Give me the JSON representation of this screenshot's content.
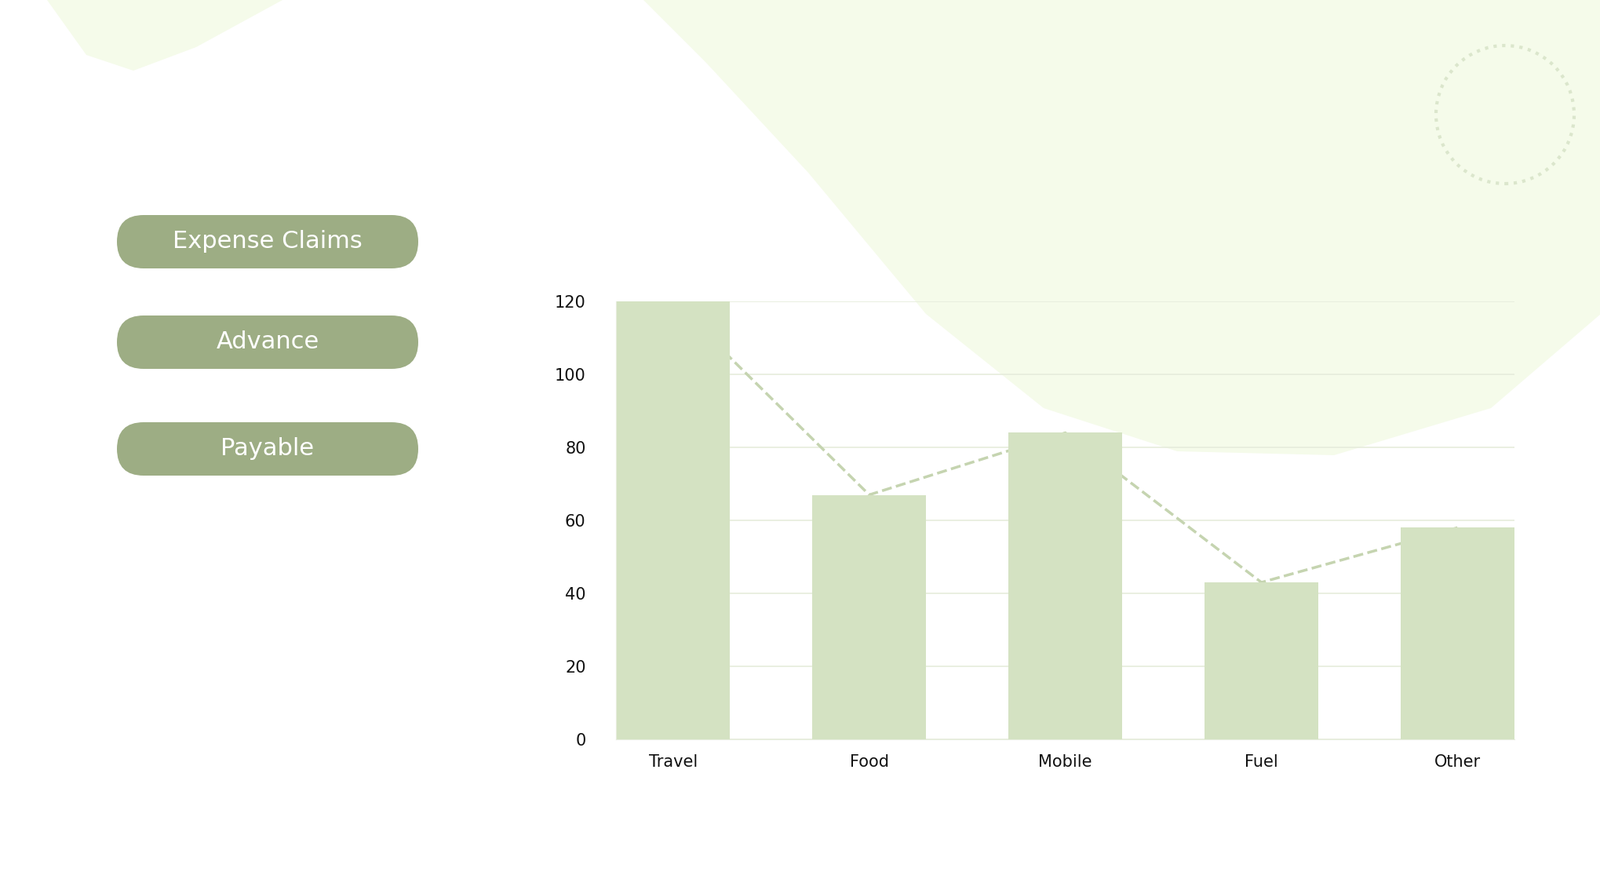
{
  "chart_data": {
    "type": "bar",
    "categories": [
      "Travel",
      "Food",
      "Mobile",
      "Fuel",
      "Other"
    ],
    "values": [
      120,
      67,
      84,
      43,
      58
    ],
    "color": "#d4e2c2",
    "line_style": "dashed",
    "ylim": [
      0,
      120
    ],
    "yticks": [
      0,
      20,
      40,
      60,
      80,
      100,
      120
    ],
    "grid": true,
    "annotations": [
      "Expense Claims",
      "Advance",
      "Payable"
    ]
  }
}
